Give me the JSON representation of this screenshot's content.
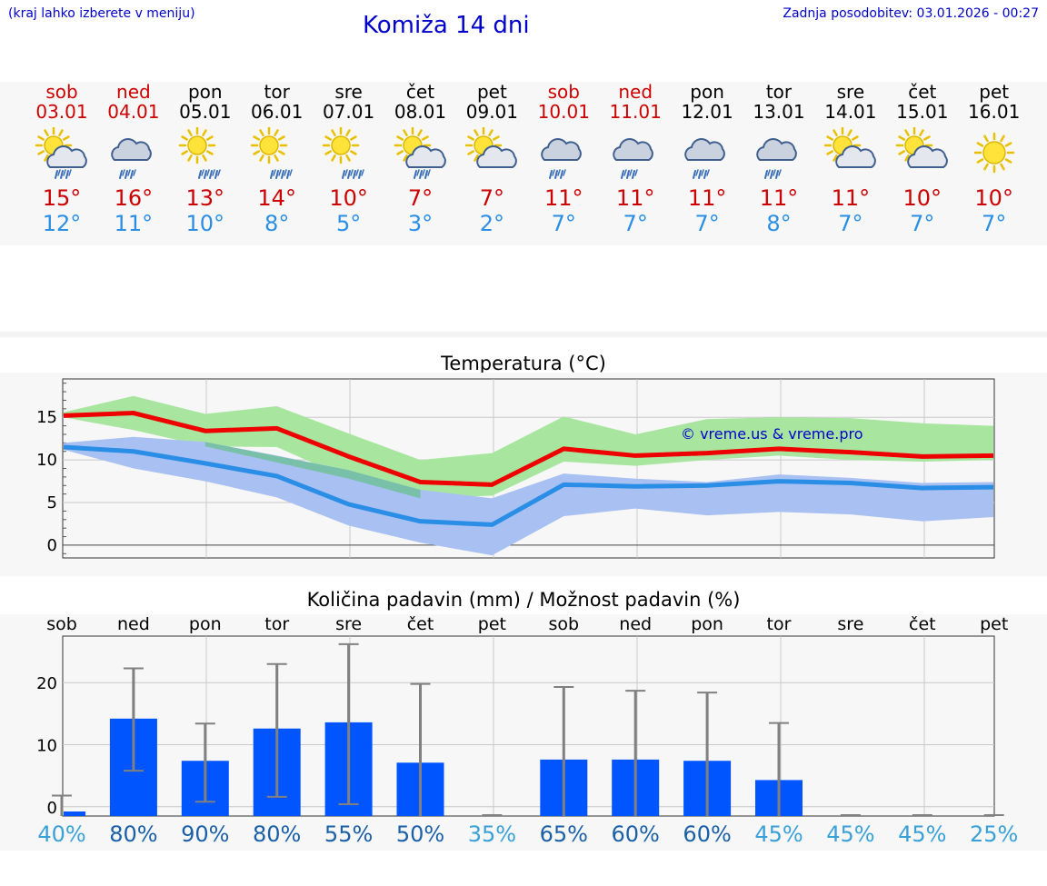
{
  "header": {
    "hint": "(kraj lahko izberete v meniju)",
    "title": "Komiža 14 dni",
    "updated": "Zadnja posodobitev: 03.01.2026 - 00:27"
  },
  "days": [
    {
      "name": "sob",
      "date": "03.01",
      "weekend": true,
      "icon": "sun-cloud-rain-icon",
      "tmax": "15°",
      "tmin": "12°"
    },
    {
      "name": "ned",
      "date": "04.01",
      "weekend": true,
      "icon": "cloud-rain-icon",
      "tmax": "16°",
      "tmin": "11°"
    },
    {
      "name": "pon",
      "date": "05.01",
      "weekend": false,
      "icon": "sun-rain-icon",
      "tmax": "13°",
      "tmin": "10°"
    },
    {
      "name": "tor",
      "date": "06.01",
      "weekend": false,
      "icon": "sun-rain-icon",
      "tmax": "14°",
      "tmin": "8°"
    },
    {
      "name": "sre",
      "date": "07.01",
      "weekend": false,
      "icon": "sun-rain-icon",
      "tmax": "10°",
      "tmin": "5°"
    },
    {
      "name": "čet",
      "date": "08.01",
      "weekend": false,
      "icon": "sun-cloud-rain-icon",
      "tmax": "7°",
      "tmin": "3°"
    },
    {
      "name": "pet",
      "date": "09.01",
      "weekend": false,
      "icon": "sun-cloud-icon",
      "tmax": "7°",
      "tmin": "2°"
    },
    {
      "name": "sob",
      "date": "10.01",
      "weekend": true,
      "icon": "cloud-rain-icon",
      "tmax": "11°",
      "tmin": "7°"
    },
    {
      "name": "ned",
      "date": "11.01",
      "weekend": true,
      "icon": "cloud-rain-icon",
      "tmax": "11°",
      "tmin": "7°"
    },
    {
      "name": "pon",
      "date": "12.01",
      "weekend": false,
      "icon": "cloud-rain-icon",
      "tmax": "11°",
      "tmin": "7°"
    },
    {
      "name": "tor",
      "date": "13.01",
      "weekend": false,
      "icon": "cloud-rain-icon",
      "tmax": "11°",
      "tmin": "8°"
    },
    {
      "name": "sre",
      "date": "14.01",
      "weekend": false,
      "icon": "sun-cloud-icon",
      "tmax": "11°",
      "tmin": "7°"
    },
    {
      "name": "čet",
      "date": "15.01",
      "weekend": false,
      "icon": "sun-cloud-icon",
      "tmax": "10°",
      "tmin": "7°"
    },
    {
      "name": "pet",
      "date": "16.01",
      "weekend": false,
      "icon": "sun-icon",
      "tmax": "10°",
      "tmin": "7°"
    }
  ],
  "copyright": "© vreme.us & vreme.pro",
  "colors": {
    "max": "#ee0000",
    "min": "#2a8ee6",
    "max_band": "#a8e6a0",
    "min_band": "#a9c0f2",
    "overlap": "#78c0a8",
    "bar": "#0055ff",
    "whisker": "#808080"
  },
  "chart_data": [
    {
      "type": "line",
      "title": "Temperatura (°C)",
      "categories": [
        "03.01",
        "04.01",
        "05.01",
        "06.01",
        "07.01",
        "08.01",
        "09.01",
        "10.01",
        "11.01",
        "12.01",
        "13.01",
        "14.01",
        "15.01",
        "16.01"
      ],
      "ylim": [
        -1.5,
        19.5
      ],
      "yticks": [
        0,
        5,
        10,
        15
      ],
      "series": [
        {
          "name": "max",
          "values": [
            15.2,
            15.5,
            13.4,
            13.7,
            10.4,
            7.4,
            7.1,
            11.3,
            10.5,
            10.8,
            11.3,
            10.9,
            10.4,
            10.5
          ],
          "band_low": [
            15.0,
            13.5,
            11.6,
            11.5,
            7.8,
            5.5,
            5.8,
            9.8,
            9.3,
            10.0,
            10.5,
            10.0,
            9.8,
            10.0
          ],
          "band_high": [
            15.6,
            17.5,
            15.4,
            16.3,
            13.1,
            10.0,
            10.8,
            15.1,
            13.0,
            14.8,
            15.0,
            14.9,
            14.3,
            14.0
          ]
        },
        {
          "name": "min",
          "values": [
            11.5,
            11.0,
            9.6,
            8.1,
            4.8,
            2.8,
            2.4,
            7.1,
            6.9,
            7.0,
            7.5,
            7.3,
            6.7,
            6.8
          ],
          "band_low": [
            11.2,
            9.0,
            7.5,
            5.6,
            2.3,
            0.3,
            -1.2,
            3.4,
            4.3,
            3.5,
            3.9,
            3.6,
            2.8,
            3.3
          ],
          "band_high": [
            12.0,
            12.7,
            12.1,
            10.5,
            8.8,
            6.5,
            5.5,
            8.4,
            7.8,
            7.4,
            8.3,
            7.9,
            7.3,
            7.4
          ]
        }
      ]
    },
    {
      "type": "bar",
      "title": "Količina padavin (mm) / Možnost padavin (%)",
      "categories": [
        "sob",
        "ned",
        "pon",
        "tor",
        "sre",
        "čet",
        "pet",
        "sob",
        "ned",
        "pon",
        "tor",
        "sre",
        "čet",
        "pet"
      ],
      "ylim": [
        -1.5,
        27.5
      ],
      "yticks": [
        0,
        10,
        20
      ],
      "values": [
        0.3,
        14.2,
        7.4,
        12.6,
        13.6,
        7.1,
        0,
        7.6,
        7.6,
        7.4,
        4.3,
        0,
        0,
        0
      ],
      "error_low": [
        0,
        5.8,
        0.8,
        1.6,
        0.4,
        0,
        0,
        0,
        0,
        0,
        0,
        0,
        0,
        0
      ],
      "error_high": [
        1.8,
        22.3,
        13.4,
        23.0,
        26.2,
        19.8,
        0,
        19.3,
        18.7,
        18.4,
        13.5,
        0,
        0,
        0
      ],
      "probability": [
        "40%",
        "80%",
        "90%",
        "80%",
        "55%",
        "50%",
        "35%",
        "65%",
        "60%",
        "60%",
        "45%",
        "45%",
        "45%",
        "25%"
      ],
      "probability_shade": [
        "light",
        "dark",
        "dark",
        "dark",
        "dark",
        "dark",
        "light",
        "dark",
        "dark",
        "dark",
        "light",
        "light",
        "light",
        "light"
      ]
    }
  ]
}
